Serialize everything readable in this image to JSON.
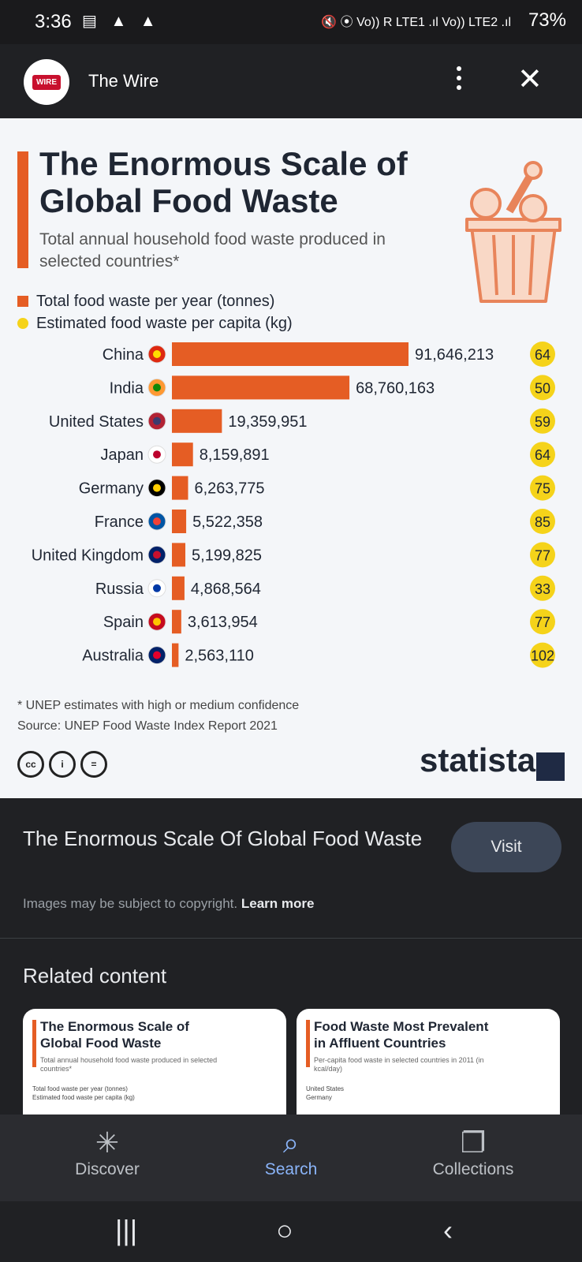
{
  "status_bar": {
    "time": "3:36",
    "left_icons": "▤ ▲ ▲",
    "right_icons": "🔇 ⦿ Vo)) R LTE1 .ıl Vo)) LTE2 .ıl",
    "battery": "73%"
  },
  "app_bar": {
    "logo_text": "WIRE",
    "site_name": "The Wire"
  },
  "infographic": {
    "title": "The Enormous Scale of Global Food Waste",
    "subtitle": "Total annual household food waste produced in selected countries*",
    "legend": [
      {
        "label": "Total food waste per year (tonnes)",
        "color": "#e55d24"
      },
      {
        "label": "Estimated food waste per capita (kg)",
        "color": "#f5d31a"
      }
    ],
    "footnote": "* UNEP estimates with high or medium confidence",
    "source": "Source: UNEP Food Waste Index Report 2021",
    "cc_icons": [
      "cc",
      "i",
      "="
    ],
    "brand": "statista"
  },
  "chart_data": {
    "type": "bar",
    "title": "The Enormous Scale of Global Food Waste",
    "subtitle": "Total annual household food waste produced in selected countries*",
    "categories": [
      "China",
      "India",
      "United States",
      "Japan",
      "Germany",
      "France",
      "United Kingdom",
      "Russia",
      "Spain",
      "Australia"
    ],
    "series": [
      {
        "name": "Total food waste per year (tonnes)",
        "values": [
          91646213,
          68760163,
          19359951,
          8159891,
          6263775,
          5522358,
          5199825,
          4868564,
          3613954,
          2563110
        ]
      },
      {
        "name": "Estimated food waste per capita (kg)",
        "values": [
          64,
          50,
          59,
          64,
          75,
          85,
          77,
          33,
          77,
          102
        ]
      }
    ],
    "value_labels": [
      "91,646,213",
      "68,760,163",
      "19,359,951",
      "8,159,891",
      "6,263,775",
      "5,522,358",
      "5,199,825",
      "4,868,564",
      "3,613,954",
      "2,563,110"
    ],
    "flag_icons": [
      "china-flag-icon",
      "india-flag-icon",
      "usa-flag-icon",
      "japan-flag-icon",
      "germany-flag-icon",
      "france-flag-icon",
      "uk-flag-icon",
      "russia-flag-icon",
      "spain-flag-icon",
      "australia-flag-icon"
    ],
    "bar_color": "#e55d24",
    "bubble_color": "#f5d31a"
  },
  "caption": {
    "title": "The Enormous Scale Of Global Food Waste",
    "visit_label": "Visit",
    "copyright_text": "Images may be subject to copyright.",
    "learn_more": "Learn more"
  },
  "related": {
    "heading": "Related content",
    "cards": [
      {
        "title": "The Enormous Scale of Global Food Waste",
        "subtitle": "Total annual household food waste produced in selected countries*",
        "legend1": "Total food waste per year (tonnes)",
        "legend2": "Estimated food waste per capita (kg)"
      },
      {
        "title": "Food Waste Most Prevalent in Affluent Countries",
        "subtitle": "Per-capita food waste in selected countries in 2011 (in kcal/day)",
        "legend1": "United States",
        "legend2": "Germany"
      }
    ]
  },
  "bottom_nav": {
    "items": [
      {
        "label": "Discover",
        "icon": "asterisk-icon"
      },
      {
        "label": "Search",
        "icon": "search-icon"
      },
      {
        "label": "Collections",
        "icon": "bookmarks-icon"
      }
    ]
  },
  "system_nav": {
    "recents": "|||",
    "home": "○",
    "back": "‹"
  }
}
